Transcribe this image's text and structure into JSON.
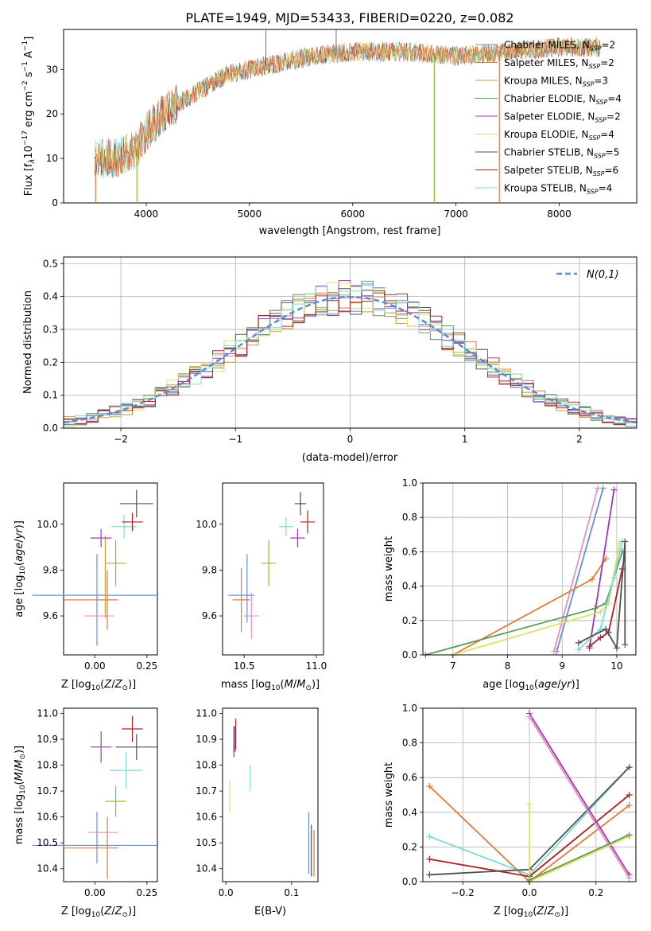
{
  "figure": {
    "title": "PLATE=1949, MJD=53433, FIBERID=0220, z=0.082"
  },
  "colors": {
    "chabrier_miles": "#6a8de0",
    "salpeter_miles": "#e07b39",
    "kroupa_miles": "#c99a3a",
    "chabrier_elodie": "#5a9a5a",
    "salpeter_elodie": "#9a3ab0",
    "kroupa_elodie": "#e0e060",
    "chabrier_stelib": "#505050",
    "salpeter_stelib": "#b02020",
    "kroupa_stelib": "#7adada",
    "pink": "#e890c0",
    "lime": "#8ac030",
    "gaussian": "#5b8bd6"
  },
  "chart_data": [
    {
      "id": "spectrum",
      "type": "line",
      "xlabel": "wavelength [Angstrom, rest frame]",
      "ylabel": "Flux [f",
      "xlim": [
        3200,
        8750
      ],
      "ylim": [
        0,
        39
      ],
      "xticks": [
        4000,
        5000,
        6000,
        7000,
        8000
      ],
      "yticks": [
        0,
        10,
        20,
        30
      ],
      "grid": false,
      "legend_position": "upper right",
      "legend": [
        {
          "label": "Chabrier MILES, N",
          "sub": "SSP",
          "eq": "=2",
          "color_key": "chabrier_miles"
        },
        {
          "label": "Salpeter MILES, N",
          "sub": "SSP",
          "eq": "=2",
          "color_key": "salpeter_miles"
        },
        {
          "label": "Kroupa MILES, N",
          "sub": "SSP",
          "eq": "=3",
          "color_key": "kroupa_miles"
        },
        {
          "label": "Chabrier ELODIE, N",
          "sub": "SSP",
          "eq": "=4",
          "color_key": "chabrier_elodie"
        },
        {
          "label": "Salpeter ELODIE, N",
          "sub": "SSP",
          "eq": "=2",
          "color_key": "salpeter_elodie"
        },
        {
          "label": "Kroupa ELODIE, N",
          "sub": "SSP",
          "eq": "=4",
          "color_key": "kroupa_elodie"
        },
        {
          "label": "Chabrier STELIB, N",
          "sub": "SSP",
          "eq": "=5",
          "color_key": "chabrier_stelib"
        },
        {
          "label": "Salpeter STELIB, N",
          "sub": "SSP",
          "eq": "=6",
          "color_key": "salpeter_stelib"
        },
        {
          "label": "Kroupa STELIB, N",
          "sub": "SSP",
          "eq": "=4",
          "color_key": "kroupa_stelib"
        }
      ],
      "continuum": [
        [
          3500,
          10
        ],
        [
          3700,
          10
        ],
        [
          3900,
          12
        ],
        [
          4000,
          16
        ],
        [
          4200,
          21
        ],
        [
          4500,
          25
        ],
        [
          4800,
          29
        ],
        [
          5200,
          31
        ],
        [
          5600,
          33
        ],
        [
          6000,
          34
        ],
        [
          6500,
          34
        ],
        [
          7000,
          33
        ],
        [
          7500,
          34
        ],
        [
          8000,
          35
        ],
        [
          8400,
          35
        ]
      ],
      "drops": [
        {
          "x": 3510,
          "color_key": "salpeter_miles"
        },
        {
          "x": 3910,
          "color_key": "lime"
        },
        {
          "x": 6790,
          "color_key": "lime"
        },
        {
          "x": 7420,
          "color_key": "salpeter_miles"
        }
      ],
      "spikes": [
        {
          "x": 5160,
          "y": 39
        },
        {
          "x": 5840,
          "y": 39
        }
      ]
    },
    {
      "id": "residuals",
      "type": "histogram",
      "xlabel": "(data-model)/error",
      "ylabel": "Normed distribution",
      "xlim": [
        -2.5,
        2.5
      ],
      "ylim": [
        0,
        0.52
      ],
      "xticks": [
        -2,
        -1,
        0,
        1,
        2
      ],
      "yticks": [
        0.0,
        0.1,
        0.2,
        0.3,
        0.4,
        0.5
      ],
      "grid": true,
      "legend_position": "upper right",
      "legend_label": "N(0,1)",
      "bin_width": 0.1,
      "series_colors": [
        "chabrier_miles",
        "salpeter_miles",
        "kroupa_miles",
        "chabrier_elodie",
        "salpeter_elodie",
        "kroupa_elodie",
        "chabrier_stelib",
        "salpeter_stelib",
        "kroupa_stelib"
      ]
    },
    {
      "id": "age_z",
      "type": "scatter",
      "xlabel": "Z [log",
      "ylabel": "age [log",
      "xlim": [
        -0.15,
        0.3
      ],
      "ylim": [
        9.43,
        10.18
      ],
      "xticks": [
        0.0,
        0.25
      ],
      "xticklabels": [
        "0.00",
        "0.25"
      ],
      "yticks": [
        9.6,
        9.8,
        10.0
      ],
      "grid": false,
      "points": [
        {
          "x": 0.0,
          "y": 9.69,
          "xerr": 0.3,
          "yerr": 0.0,
          "color_key": "chabrier_miles"
        },
        {
          "x": 0.05,
          "y": 9.77,
          "xerr": 0.0,
          "yerr": 0.18,
          "color_key": "kroupa_miles"
        },
        {
          "x": -0.02,
          "y": 9.67,
          "xerr": 0.13,
          "yerr": 0.0,
          "color_key": "salpeter_miles"
        },
        {
          "x": 0.01,
          "y": 9.67,
          "xerr": 0.0,
          "yerr": 0.2,
          "color_key": "chabrier_miles"
        },
        {
          "x": 0.06,
          "y": 9.67,
          "xerr": 0.0,
          "yerr": 0.13,
          "color_key": "salpeter_miles"
        },
        {
          "x": 0.02,
          "y": 9.6,
          "xerr": 0.07,
          "yerr": 0.0,
          "color_key": "pink"
        },
        {
          "x": 0.1,
          "y": 9.83,
          "xerr": 0.05,
          "yerr": 0.1,
          "color_key": "lime"
        },
        {
          "x": 0.03,
          "y": 9.94,
          "xerr": 0.05,
          "yerr": 0.04,
          "color_key": "salpeter_elodie"
        },
        {
          "x": 0.14,
          "y": 9.99,
          "xerr": 0.06,
          "yerr": 0.05,
          "color_key": "kroupa_stelib"
        },
        {
          "x": 0.18,
          "y": 10.01,
          "xerr": 0.05,
          "yerr": 0.04,
          "color_key": "salpeter_stelib"
        },
        {
          "x": 0.2,
          "y": 10.09,
          "xerr": 0.08,
          "yerr": 0.06,
          "color_key": "chabrier_stelib"
        }
      ]
    },
    {
      "id": "age_mass",
      "type": "scatter",
      "xlabel": "mass [log",
      "ylabel": "",
      "xlim": [
        10.35,
        11.05
      ],
      "ylim": [
        9.43,
        10.18
      ],
      "xticks": [
        10.5,
        11.0
      ],
      "xticklabels": [
        "10.5",
        "11.0"
      ],
      "yticks": [
        9.6,
        9.8,
        10.0
      ],
      "grid": false,
      "points": [
        {
          "x": 10.48,
          "y": 9.69,
          "xerr": 0.09,
          "yerr": 0.0,
          "color_key": "chabrier_miles"
        },
        {
          "x": 10.52,
          "y": 9.72,
          "xerr": 0.0,
          "yerr": 0.15,
          "color_key": "chabrier_miles"
        },
        {
          "x": 10.48,
          "y": 9.67,
          "xerr": 0.06,
          "yerr": 0.14,
          "color_key": "salpeter_miles"
        },
        {
          "x": 10.55,
          "y": 9.6,
          "xerr": 0.05,
          "yerr": 0.1,
          "color_key": "pink"
        },
        {
          "x": 10.67,
          "y": 9.83,
          "xerr": 0.05,
          "yerr": 0.1,
          "color_key": "lime"
        },
        {
          "x": 10.87,
          "y": 9.94,
          "xerr": 0.05,
          "yerr": 0.04,
          "color_key": "salpeter_elodie"
        },
        {
          "x": 10.79,
          "y": 9.99,
          "xerr": 0.05,
          "yerr": 0.04,
          "color_key": "kroupa_stelib"
        },
        {
          "x": 10.94,
          "y": 10.01,
          "xerr": 0.05,
          "yerr": 0.05,
          "color_key": "salpeter_stelib"
        },
        {
          "x": 10.89,
          "y": 10.09,
          "xerr": 0.04,
          "yerr": 0.05,
          "color_key": "chabrier_stelib"
        }
      ]
    },
    {
      "id": "mw_age",
      "type": "line",
      "xlabel": "age  [log",
      "ylabel": "mass weight",
      "xlim": [
        6.45,
        10.35
      ],
      "ylim": [
        0,
        1
      ],
      "xticks": [
        7,
        8,
        9,
        10
      ],
      "xticklabels": [
        "7",
        "8",
        "9",
        "10"
      ],
      "yticks": [
        0.0,
        0.2,
        0.4,
        0.6,
        0.8,
        1.0
      ],
      "grid": true,
      "series": [
        {
          "color_key": "chabrier_miles",
          "x": [
            8.9,
            9.75
          ],
          "y": [
            0.02,
            0.97
          ]
        },
        {
          "color_key": "pink",
          "x": [
            8.85,
            9.65
          ],
          "y": [
            0.02,
            0.97
          ]
        },
        {
          "color_key": "salpeter_miles",
          "x": [
            7.0,
            9.55,
            9.8
          ],
          "y": [
            0.0,
            0.44,
            0.56
          ]
        },
        {
          "color_key": "salpeter_elodie",
          "x": [
            9.5,
            9.95
          ],
          "y": [
            0.04,
            0.96
          ]
        },
        {
          "color_key": "chabrier_elodie",
          "x": [
            6.5,
            9.6,
            9.8,
            10.1
          ],
          "y": [
            0.0,
            0.27,
            0.3,
            0.6
          ]
        },
        {
          "color_key": "kroupa_elodie",
          "x": [
            7.0,
            9.7,
            9.85,
            10.05
          ],
          "y": [
            0.0,
            0.25,
            0.3,
            0.65
          ]
        },
        {
          "color_key": "kroupa_stelib",
          "x": [
            9.3,
            9.7,
            9.95,
            10.1
          ],
          "y": [
            0.03,
            0.15,
            0.45,
            0.66
          ]
        },
        {
          "color_key": "salpeter_stelib",
          "x": [
            9.5,
            9.7,
            9.85,
            10.1
          ],
          "y": [
            0.05,
            0.1,
            0.13,
            0.5
          ]
        },
        {
          "color_key": "chabrier_stelib",
          "x": [
            9.3,
            9.8,
            10.0,
            10.15,
            10.15
          ],
          "y": [
            0.07,
            0.15,
            0.04,
            0.66,
            0.06
          ]
        }
      ]
    },
    {
      "id": "mass_z",
      "type": "scatter",
      "xlabel": "Z [log",
      "ylabel": "mass [log",
      "xlim": [
        -0.15,
        0.3
      ],
      "ylim": [
        10.35,
        11.02
      ],
      "xticks": [
        0.0,
        0.25
      ],
      "xticklabels": [
        "0.00",
        "0.25"
      ],
      "yticks": [
        10.4,
        10.5,
        10.6,
        10.7,
        10.8,
        10.9,
        11.0
      ],
      "grid": false,
      "points": [
        {
          "x": 0.0,
          "y": 10.49,
          "xerr": 0.3,
          "yerr": 0.0,
          "color_key": "chabrier_miles"
        },
        {
          "x": 0.01,
          "y": 10.52,
          "xerr": 0.0,
          "yerr": 0.1,
          "color_key": "chabrier_miles"
        },
        {
          "x": -0.02,
          "y": 10.48,
          "xerr": 0.13,
          "yerr": 0.0,
          "color_key": "salpeter_miles"
        },
        {
          "x": 0.06,
          "y": 10.48,
          "xerr": 0.0,
          "yerr": 0.12,
          "color_key": "salpeter_miles"
        },
        {
          "x": 0.04,
          "y": 10.54,
          "xerr": 0.07,
          "yerr": 0.0,
          "color_key": "pink"
        },
        {
          "x": 0.1,
          "y": 10.66,
          "xerr": 0.05,
          "yerr": 0.06,
          "color_key": "lime"
        },
        {
          "x": 0.03,
          "y": 10.87,
          "xerr": 0.05,
          "yerr": 0.06,
          "color_key": "salpeter_elodie"
        },
        {
          "x": 0.15,
          "y": 10.78,
          "xerr": 0.08,
          "yerr": 0.07,
          "color_key": "kroupa_stelib"
        },
        {
          "x": 0.18,
          "y": 10.94,
          "xerr": 0.05,
          "yerr": 0.05,
          "color_key": "salpeter_stelib"
        },
        {
          "x": 0.2,
          "y": 10.87,
          "xerr": 0.1,
          "yerr": 0.05,
          "color_key": "chabrier_stelib"
        }
      ]
    },
    {
      "id": "mass_ebv",
      "type": "scatter",
      "xlabel": "E(B-V)",
      "ylabel": "",
      "xlim": [
        -0.005,
        0.14
      ],
      "ylim": [
        10.35,
        11.02
      ],
      "xticks": [
        0.0,
        0.1
      ],
      "xticklabels": [
        "0.0",
        "0.1"
      ],
      "yticks": [
        10.4,
        10.5,
        10.6,
        10.7,
        10.8,
        10.9,
        11.0
      ],
      "grid": false,
      "points": [
        {
          "x": 0.012,
          "y": 10.89,
          "xerr": 0.0,
          "yerr": 0.06,
          "color_key": "salpeter_elodie"
        },
        {
          "x": 0.015,
          "y": 10.92,
          "xerr": 0.0,
          "yerr": 0.06,
          "color_key": "salpeter_stelib"
        },
        {
          "x": 0.014,
          "y": 10.9,
          "xerr": 0.0,
          "yerr": 0.05,
          "color_key": "chabrier_stelib"
        },
        {
          "x": 0.006,
          "y": 10.68,
          "xerr": 0.0,
          "yerr": 0.06,
          "color_key": "kroupa_elodie"
        },
        {
          "x": 0.037,
          "y": 10.75,
          "xerr": 0.0,
          "yerr": 0.05,
          "color_key": "kroupa_stelib"
        },
        {
          "x": 0.126,
          "y": 10.5,
          "xerr": 0.0,
          "yerr": 0.12,
          "color_key": "chabrier_miles"
        },
        {
          "x": 0.134,
          "y": 10.46,
          "xerr": 0.0,
          "yerr": 0.09,
          "color_key": "salpeter_miles"
        },
        {
          "x": 0.13,
          "y": 10.47,
          "xerr": 0.0,
          "yerr": 0.1,
          "color_key": "chabrier_stelib"
        }
      ]
    },
    {
      "id": "mw_z",
      "type": "line",
      "xlabel": "Z [log",
      "ylabel": "mass weight",
      "xlim": [
        -0.32,
        0.32
      ],
      "ylim": [
        0,
        1
      ],
      "xticks": [
        -0.2,
        0.0,
        0.2
      ],
      "xticklabels": [
        "-0.2",
        "0.0",
        "0.2"
      ],
      "yticks": [
        0.0,
        0.2,
        0.4,
        0.6,
        0.8,
        1.0
      ],
      "grid": true,
      "series": [
        {
          "color_key": "salpeter_miles",
          "x": [
            -0.3,
            0.0,
            0.3
          ],
          "y": [
            0.55,
            0.0,
            0.44
          ]
        },
        {
          "color_key": "kroupa_stelib",
          "x": [
            -0.3,
            0.0,
            0.3
          ],
          "y": [
            0.26,
            0.04,
            0.66
          ]
        },
        {
          "color_key": "salpeter_stelib",
          "x": [
            -0.3,
            0.0,
            0.3
          ],
          "y": [
            0.13,
            0.03,
            0.5
          ]
        },
        {
          "color_key": "chabrier_stelib",
          "x": [
            -0.3,
            0.0,
            0.3
          ],
          "y": [
            0.04,
            0.07,
            0.66
          ]
        },
        {
          "color_key": "salpeter_elodie",
          "x": [
            0.0,
            0.3
          ],
          "y": [
            0.97,
            0.04
          ]
        },
        {
          "color_key": "pink",
          "x": [
            0.0,
            0.3
          ],
          "y": [
            0.95,
            0.02
          ]
        },
        {
          "color_key": "kroupa_elodie",
          "x": [
            0.0,
            0.0,
            0.3
          ],
          "y": [
            0.45,
            0.0,
            0.26
          ]
        },
        {
          "color_key": "chabrier_elodie",
          "x": [
            0.0,
            0.3
          ],
          "y": [
            0.01,
            0.27
          ]
        }
      ]
    }
  ]
}
